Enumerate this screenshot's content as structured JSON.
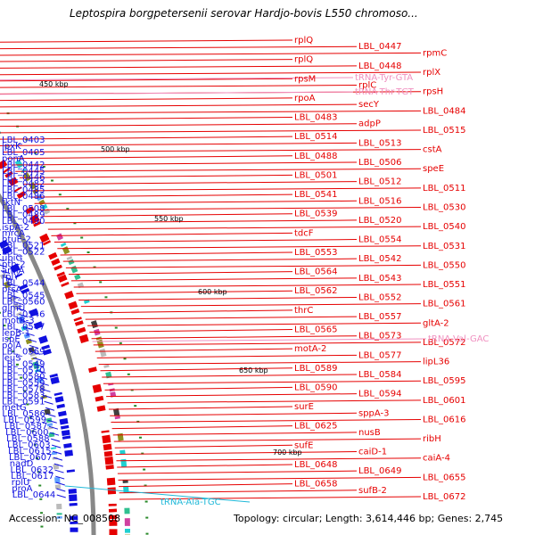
{
  "title": "Leptospira borgpetersenii serovar Hardjo-bovis L550 chromoso...",
  "footer": {
    "accession": "Accession: NC_008508",
    "topology": "Topology: circular; Length: 3,614,446 bp; Genes: 2,745"
  },
  "colors": {
    "forward": "#e60000",
    "reverse": "#1010e0",
    "rna": "#f090c0",
    "rna_minus": "#20b8d8",
    "backbone": "#888888"
  },
  "ticks": [
    "450 kbp",
    "500 kbp",
    "550 kbp",
    "600 kbp",
    "650 kbp",
    "700 kbp"
  ],
  "forward_labels": [
    "rplQ",
    "LBL_0447",
    "rpmC",
    "rplQ",
    "LBL_0448",
    "rplX",
    "rpsM",
    "rplC",
    "rpsH",
    "rpoA",
    "secY",
    "LBL_0484",
    "LBL_0483",
    "adpP",
    "LBL_0515",
    "LBL_0514",
    "LBL_0513",
    "cstA",
    "LBL_0488",
    "LBL_0506",
    "speE",
    "LBL_0501",
    "LBL_0512",
    "LBL_0511",
    "LBL_0541",
    "LBL_0516",
    "LBL_0530",
    "LBL_0539",
    "LBL_0520",
    "LBL_0540",
    "tdcF",
    "LBL_0554",
    "LBL_0531",
    "LBL_0553",
    "LBL_0542",
    "LBL_0550",
    "LBL_0564",
    "LBL_0543",
    "LBL_0551",
    "LBL_0562",
    "LBL_0552",
    "LBL_0561",
    "thrC",
    "LBL_0557",
    "gltA-2",
    "LBL_0565",
    "LBL_0573",
    "LBL_0572",
    "motA-2",
    "LBL_0577",
    "lipL36",
    "LBL_0589",
    "LBL_0584",
    "LBL_0595",
    "LBL_0590",
    "LBL_0594",
    "LBL_0601",
    "surE",
    "sppA-3",
    "LBL_0616",
    "LBL_0625",
    "nusB",
    "ribH",
    "sufE",
    "caiD-1",
    "caiA-4",
    "LBL_0648",
    "LBL_0649",
    "LBL_0655",
    "LBL_0658",
    "sufB-2",
    "LBL_0672"
  ],
  "rna_labels": [
    "tRNA-Tyr-GTA",
    "tRNA-Thr-TGT",
    "tRNA-Val-GAC"
  ],
  "reverse_labels": [
    "LBL_0403",
    "lpxK",
    "LBL_0405",
    "ponA",
    "LBL_0442",
    "LBL_0445",
    "LBL_0446",
    "LBL_0482",
    "LBL_0485",
    "LBL_0486",
    "tktN",
    "LBL_0508",
    "LBL_0489",
    "LBL_0490",
    "ispA-2",
    "mrcA",
    "btuE-2",
    "LBL_0521",
    "LBL_0522",
    "ubiG",
    "pth-2",
    "amiA",
    "rplY",
    "LBL_0544",
    "prsA",
    "LBL_0545",
    "LBL_0560",
    "glmU",
    "LBL_0546",
    "motB-3",
    "LBL_0547",
    "lepB-1",
    "ispE",
    "polA",
    "LBL_0569",
    "leuS",
    "LBL_0549",
    "LBL_0570",
    "LBL_0580",
    "LBL_0559",
    "LBL_0578",
    "LBL_0583",
    "LBL_0591",
    "metG",
    "LBL_0586",
    "LBL_0599",
    "LBL_0587",
    "LBL_0600",
    "LBL_0588",
    "LBL_0603",
    "LBL_0615",
    "LBL_0607",
    "nadD",
    "LBL_0632",
    "LBL_0617",
    "rplU",
    "proA",
    "LBL_0644"
  ],
  "rna_minus_labels": [
    "tRNA-Ala-TGC"
  ]
}
